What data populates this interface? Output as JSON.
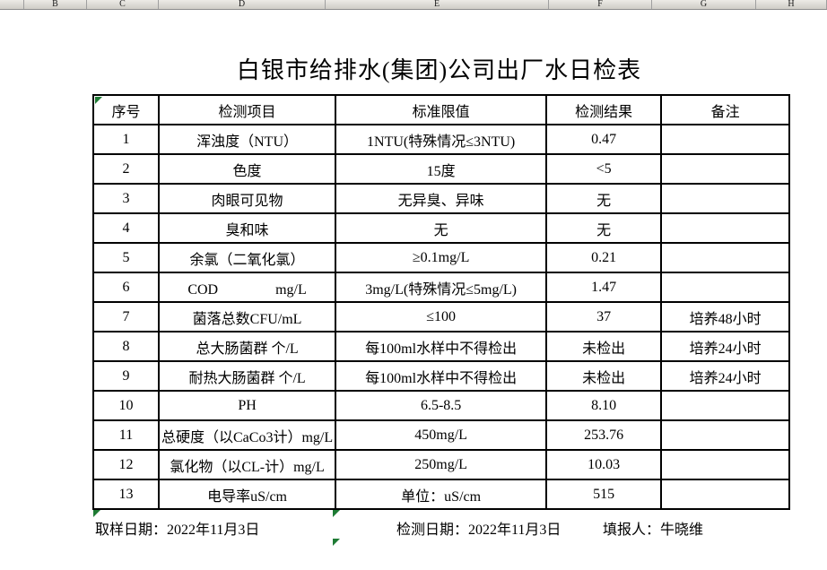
{
  "spreadsheet": {
    "column_letters": [
      "",
      "B",
      "C",
      "D",
      "E",
      "F",
      "G",
      "H"
    ]
  },
  "title": "白银市给排水(集团)公司出厂水日检表",
  "table": {
    "headers": [
      "序号",
      "检测项目",
      "标准限值",
      "检测结果",
      "备注"
    ],
    "rows": [
      [
        "1",
        "浑浊度（NTU）",
        "1NTU(特殊情况≤3NTU)",
        "0.47",
        ""
      ],
      [
        "2",
        "色度",
        "15度",
        "<5",
        ""
      ],
      [
        "3",
        "肉眼可见物",
        "无异臭、异味",
        "无",
        ""
      ],
      [
        "4",
        "臭和味",
        "无",
        "无",
        ""
      ],
      [
        "5",
        "余氯（二氧化氯）",
        "≥0.1mg/L",
        "0.21",
        ""
      ],
      [
        "6",
        "COD　　　　mg/L",
        "3mg/L(特殊情况≤5mg/L)",
        "1.47",
        ""
      ],
      [
        "7",
        "菌落总数CFU/mL",
        "≤100",
        "37",
        "培养48小时"
      ],
      [
        "8",
        "总大肠菌群 个/L",
        "每100ml水样中不得检出",
        "未检出",
        "培养24小时"
      ],
      [
        "9",
        "耐热大肠菌群 个/L",
        "每100ml水样中不得检出",
        "未检出",
        "培养24小时"
      ],
      [
        "10",
        "PH",
        "6.5-8.5",
        "8.10",
        ""
      ],
      [
        "11",
        "总硬度（以CaCo3计）mg/L",
        "450mg/L",
        "253.76",
        ""
      ],
      [
        "12",
        "氯化物（以CL-计）mg/L",
        "250mg/L",
        "10.03",
        ""
      ],
      [
        "13",
        "电导率uS/cm",
        "单位：uS/cm",
        "515",
        ""
      ]
    ]
  },
  "footer": {
    "sampling_date": "取样日期：2022年11月3日",
    "test_date": "检测日期：2022年11月3日",
    "reporter": "填报人：牛晓维"
  },
  "colors": {
    "error_indicator_green": "#1e7b34",
    "column_strip_bg": "#d9d6d0",
    "table_border": "#000000"
  }
}
